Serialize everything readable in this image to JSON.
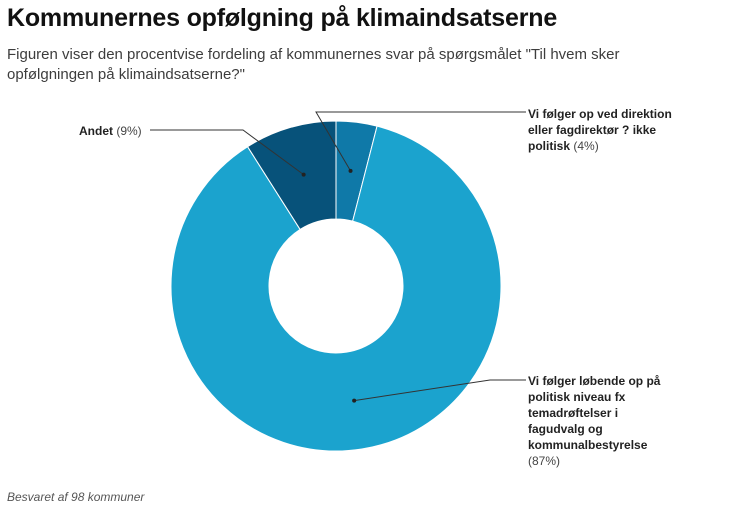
{
  "header": {
    "title": "Kommunernes opfølgning på klimaindsatserne",
    "subtitle": "Figuren viser den procentvise fordeling af kommunernes svar på spørgsmålet \"Til hvem sker opfølgningen på klimaindsatserne?\""
  },
  "footer": {
    "note": "Besvaret af 98 kommuner"
  },
  "chart_data": {
    "type": "pie",
    "subtype": "donut",
    "title": "Kommunernes opfølgning på klimaindsatserne",
    "slices": [
      {
        "label": "Vi følger op ved direktion eller fagdirektør ? ikke politisk",
        "value": 4,
        "value_label": "(4%)",
        "color": "#0f79a8"
      },
      {
        "label": "Vi følger løbende op på politisk niveau fx temadrøftelser i fagudvalg og kommunalbestyrelse",
        "value": 87,
        "value_label": "(87%)",
        "color": "#1ba3ce"
      },
      {
        "label": "Andet",
        "value": 9,
        "value_label": "(9%)",
        "color": "#07527a"
      }
    ],
    "legend": "none"
  }
}
